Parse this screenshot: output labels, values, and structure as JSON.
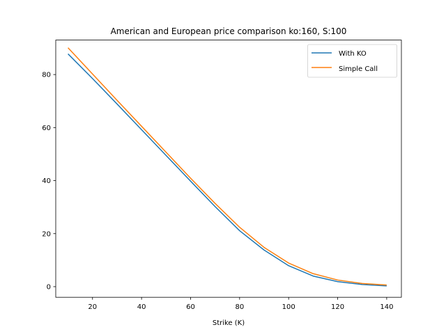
{
  "chart_data": {
    "type": "line",
    "title": "American and European price comparison ko:160, S:100",
    "xlabel": "Strike (K)",
    "ylabel": "",
    "x": [
      10,
      20,
      30,
      40,
      50,
      60,
      70,
      80,
      90,
      100,
      110,
      120,
      130,
      140
    ],
    "x_ticks": [
      20,
      40,
      60,
      80,
      100,
      120,
      140
    ],
    "y_ticks": [
      0,
      20,
      40,
      60,
      80
    ],
    "xlim": [
      5,
      146
    ],
    "ylim": [
      -4,
      93
    ],
    "grid": false,
    "legend_position": "top-right",
    "series": [
      {
        "name": "With KO",
        "color": "#1f77b4",
        "values": [
          87.8,
          78.5,
          68.9,
          59.2,
          49.5,
          39.8,
          30.2,
          21.1,
          13.8,
          7.9,
          4.0,
          1.9,
          0.8,
          0.3
        ]
      },
      {
        "name": "Simple Call",
        "color": "#ff7f0e",
        "values": [
          90.1,
          80.2,
          70.3,
          60.5,
          50.7,
          40.9,
          31.4,
          22.4,
          14.8,
          8.9,
          4.9,
          2.5,
          1.2,
          0.6
        ]
      }
    ]
  }
}
